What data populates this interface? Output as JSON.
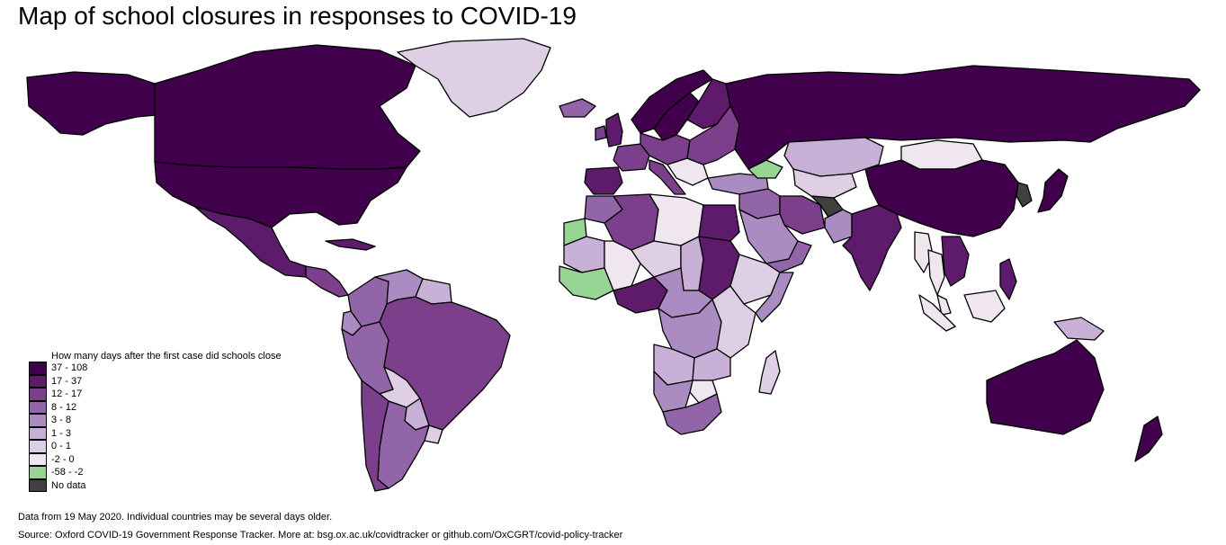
{
  "title": "Map of school closures in responses to COVID-19",
  "legend": {
    "title": "How many days after the first case did schools close",
    "items": [
      {
        "label": "37 - 108",
        "color": "#40004b"
      },
      {
        "label": "17 - 37",
        "color": "#5e1b6b"
      },
      {
        "label": "12 - 17",
        "color": "#7b3f8c"
      },
      {
        "label": "8 - 12",
        "color": "#9265a8"
      },
      {
        "label": "3 - 8",
        "color": "#ab8cc2"
      },
      {
        "label": "1 - 3",
        "color": "#c8b0d6"
      },
      {
        "label": "0 - 1",
        "color": "#dfcfe4"
      },
      {
        "label": "-2 - 0",
        "color": "#efe6f0"
      },
      {
        "label": "-58 - -2",
        "color": "#98d594"
      },
      {
        "label": "No data",
        "color": "#404040"
      }
    ]
  },
  "footnotes": {
    "data_note": "Data from 19 May 2020. Individual countries may be several days older.",
    "source": "Source: Oxford COVID-19 Government Response Tracker. More at: bsg.ox.ac.uk/covidtracker or github.com/OxCGRT/covid-policy-tracker"
  },
  "regions": [
    {
      "name": "canada",
      "category": 1
    },
    {
      "name": "usa",
      "category": 1
    },
    {
      "name": "alaska",
      "category": 1
    },
    {
      "name": "greenland",
      "category": 7
    },
    {
      "name": "mexico",
      "category": 2
    },
    {
      "name": "central-america",
      "category": 3
    },
    {
      "name": "cuba",
      "category": 2
    },
    {
      "name": "colombia",
      "category": 4
    },
    {
      "name": "venezuela",
      "category": 5
    },
    {
      "name": "guyana",
      "category": 6
    },
    {
      "name": "ecuador",
      "category": 5
    },
    {
      "name": "peru",
      "category": 4
    },
    {
      "name": "brazil",
      "category": 3
    },
    {
      "name": "bolivia",
      "category": 7
    },
    {
      "name": "paraguay",
      "category": 6
    },
    {
      "name": "chile",
      "category": 3
    },
    {
      "name": "argentina",
      "category": 4
    },
    {
      "name": "uruguay",
      "category": 7
    },
    {
      "name": "iceland",
      "category": 4
    },
    {
      "name": "uk",
      "category": 2
    },
    {
      "name": "ireland",
      "category": 3
    },
    {
      "name": "norway",
      "category": 1
    },
    {
      "name": "sweden",
      "category": 1
    },
    {
      "name": "finland",
      "category": 2
    },
    {
      "name": "iberia",
      "category": 2
    },
    {
      "name": "france",
      "category": 3
    },
    {
      "name": "central-europe",
      "category": 3
    },
    {
      "name": "italy",
      "category": 3
    },
    {
      "name": "balkans",
      "category": 8
    },
    {
      "name": "eastern-europe",
      "category": 3
    },
    {
      "name": "russia",
      "category": 1
    },
    {
      "name": "turkey",
      "category": 5
    },
    {
      "name": "morocco",
      "category": 4
    },
    {
      "name": "algeria",
      "category": 3
    },
    {
      "name": "libya",
      "category": 8
    },
    {
      "name": "egypt",
      "category": 2
    },
    {
      "name": "western-sahara",
      "category": 9
    },
    {
      "name": "mauritania",
      "category": 6
    },
    {
      "name": "mali",
      "category": 8
    },
    {
      "name": "niger",
      "category": 7
    },
    {
      "name": "chad",
      "category": 6
    },
    {
      "name": "sudan",
      "category": 2
    },
    {
      "name": "west-africa",
      "category": 9
    },
    {
      "name": "nigeria",
      "category": 2
    },
    {
      "name": "ethiopia",
      "category": 7
    },
    {
      "name": "somalia",
      "category": 5
    },
    {
      "name": "central-africa",
      "category": 5
    },
    {
      "name": "drc",
      "category": 5
    },
    {
      "name": "kenya-tanzania",
      "category": 7
    },
    {
      "name": "angola",
      "category": 6
    },
    {
      "name": "zambia",
      "category": 6
    },
    {
      "name": "zimbabwe",
      "category": 8
    },
    {
      "name": "namibia-botswana",
      "category": 5
    },
    {
      "name": "south-africa",
      "category": 4
    },
    {
      "name": "madagascar",
      "category": 7
    },
    {
      "name": "saudi-arabia",
      "category": 5
    },
    {
      "name": "yemen-oman",
      "category": 4
    },
    {
      "name": "iran",
      "category": 3
    },
    {
      "name": "iraq-syria",
      "category": 4
    },
    {
      "name": "caucasus",
      "category": 9
    },
    {
      "name": "kazakhstan",
      "category": 6
    },
    {
      "name": "central-asia",
      "category": 7
    },
    {
      "name": "afghanistan",
      "category": 10
    },
    {
      "name": "pakistan",
      "category": 5
    },
    {
      "name": "india",
      "category": 2
    },
    {
      "name": "mongolia",
      "category": 8
    },
    {
      "name": "china",
      "category": 1
    },
    {
      "name": "korea",
      "category": 10
    },
    {
      "name": "japan",
      "category": 1
    },
    {
      "name": "myanmar",
      "category": 8
    },
    {
      "name": "thailand",
      "category": 8
    },
    {
      "name": "indochina",
      "category": 2
    },
    {
      "name": "philippines",
      "category": 2
    },
    {
      "name": "malaysia",
      "category": 8
    },
    {
      "name": "sumatra",
      "category": 8
    },
    {
      "name": "borneo",
      "category": 8
    },
    {
      "name": "new-guinea",
      "category": 6
    },
    {
      "name": "australia",
      "category": 1
    },
    {
      "name": "new-zealand",
      "category": 1
    }
  ]
}
